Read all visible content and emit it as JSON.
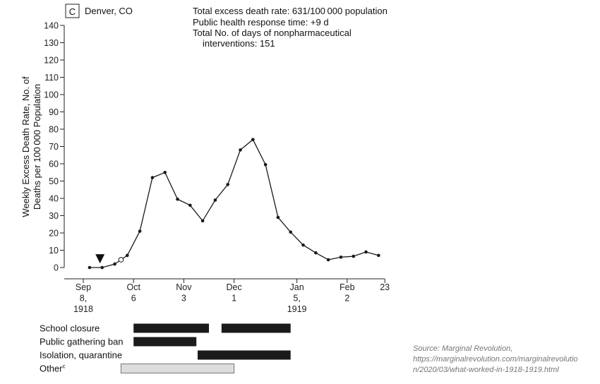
{
  "chart_data": {
    "type": "line",
    "panel_letter": "C",
    "title": "Denver, CO",
    "info_lines": [
      "Total excess death rate: 631/100 000 population",
      "Public health response time: +9 d",
      "Total No. of days of nonpharmaceutical",
      "interventions: 151"
    ],
    "ylabel_lines": [
      "Weekly Excess Death Rate, No. of",
      "Deaths per 100 000 Population"
    ],
    "ylim": [
      0,
      140
    ],
    "yticks": [
      0,
      10,
      20,
      30,
      40,
      50,
      60,
      70,
      80,
      90,
      100,
      110,
      120,
      130,
      140
    ],
    "xlim": [
      0,
      21.6
    ],
    "xticks": [
      {
        "week": 0,
        "lines": [
          "Sep",
          "8,",
          "1918"
        ]
      },
      {
        "week": 4,
        "lines": [
          "Oct",
          "6"
        ]
      },
      {
        "week": 8,
        "lines": [
          "Nov",
          "3"
        ]
      },
      {
        "week": 12,
        "lines": [
          "Dec",
          "1"
        ]
      },
      {
        "week": 17,
        "lines": [
          "Jan",
          "5,",
          "1919"
        ]
      },
      {
        "week": 21,
        "lines": [
          "Feb",
          "2"
        ]
      },
      {
        "week": 24,
        "lines": [
          "23"
        ]
      }
    ],
    "series": [
      {
        "week": [
          0.5,
          1.5,
          2.5,
          3,
          3.5,
          4.5,
          5.5,
          6.5,
          7.5,
          8.5,
          9.5,
          10.5,
          11.5,
          12.5,
          13.5,
          14.5,
          15.5,
          16.5,
          17.5,
          18.5,
          19.5,
          20.5,
          21.5,
          22.5,
          23.5
        ],
        "values": [
          0,
          0,
          2,
          4.5,
          7,
          21,
          52,
          55,
          39.5,
          36,
          27,
          39,
          48,
          68,
          74,
          59.5,
          29,
          20.5,
          13,
          8.5,
          4.5,
          6,
          6.5,
          9,
          7
        ]
      }
    ],
    "open_marker": {
      "week": 3,
      "value": 4.5
    },
    "response_marker": {
      "week": 1.5,
      "symbol": "▼"
    },
    "interventions": [
      {
        "label": "School closure",
        "superscript": "",
        "style": "filled",
        "spans": [
          [
            4,
            10
          ],
          [
            11,
            16.5
          ]
        ]
      },
      {
        "label": "Public gathering ban",
        "superscript": "",
        "style": "filled",
        "spans": [
          [
            4,
            9
          ]
        ]
      },
      {
        "label": "Isolation, quarantine",
        "superscript": "",
        "style": "filled",
        "spans": [
          [
            9.1,
            16.5
          ]
        ]
      },
      {
        "label": "Other",
        "superscript": "c",
        "style": "light",
        "spans": [
          [
            3,
            12
          ]
        ]
      }
    ],
    "colors": {
      "line": "#1a1a1a",
      "filled_bar": "#1a1a1a",
      "light_bar": "#dcdcdc",
      "light_bar_stroke": "#777777"
    }
  },
  "source": {
    "lines": [
      "Source: Marginal Revolution,",
      "https://marginalrevolution.com/marginalrevolutio",
      "n/2020/03/what-worked-in-1918-1919.html"
    ]
  }
}
